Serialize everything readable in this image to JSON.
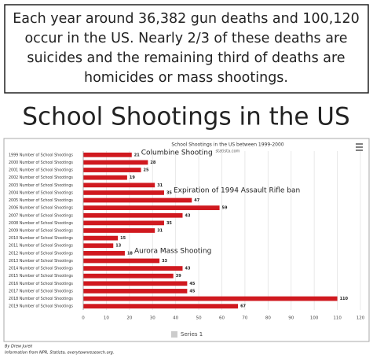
{
  "intro_lines": [
    "Each year around 36,382 gun deaths and 100,120",
    "occur in the US. Nearly 2/3 of these deaths are",
    "suicides and the remaining third of deaths are",
    "homicides or mass shootings."
  ],
  "heading": "School Shootings in the US",
  "chart_data": {
    "type": "bar",
    "orientation": "horizontal",
    "title": "School Shootings in the US between 1999-2000",
    "subtitle": "statista.com",
    "categories": [
      "1999 Number of School Shootings",
      "2000 Number of School Shootings",
      "2001 Number of School Shootings",
      "2002 Number of School Shootings",
      "2003 Number of School Shootings",
      "2004 Number of School Shootings",
      "2005 Number of School Shootings",
      "2006 Number of School Shootings",
      "2007 Number of School Shootings",
      "2008 Number of School Shootings",
      "2009 Number of School Shootings",
      "2010 Number of School Shootings",
      "2011 Number of School Shootings",
      "2012 Number of School Shootings",
      "2013 Number of School Shootings",
      "2014 Number of School Shootings",
      "2015 Number of School Shootings",
      "2016 Number of School Shootings",
      "2017 Number of School Shootings",
      "2018 Number of School Shootings",
      "2019 Number of School Shootings"
    ],
    "series": [
      {
        "name": "Series 1",
        "color": "#d0191f",
        "values": [
          21,
          28,
          25,
          19,
          31,
          35,
          47,
          59,
          43,
          35,
          31,
          15,
          13,
          18,
          33,
          43,
          39,
          45,
          45,
          110,
          67
        ]
      }
    ],
    "xlim": [
      0,
      120
    ],
    "xticks": [
      0,
      10,
      20,
      30,
      40,
      50,
      60,
      70,
      80,
      90,
      100,
      110,
      120
    ],
    "grid": true,
    "annotations": [
      {
        "text": "Columbine Shooting",
        "category": 0
      },
      {
        "text": "Expiration of 1994 Assault Rifle ban",
        "category": 5
      },
      {
        "text": "Aurora Mass Shooting",
        "category": 13
      }
    ]
  },
  "credits": [
    "By Drew Jurek",
    "Information from NPR, Statista, everytownresearch.org."
  ]
}
